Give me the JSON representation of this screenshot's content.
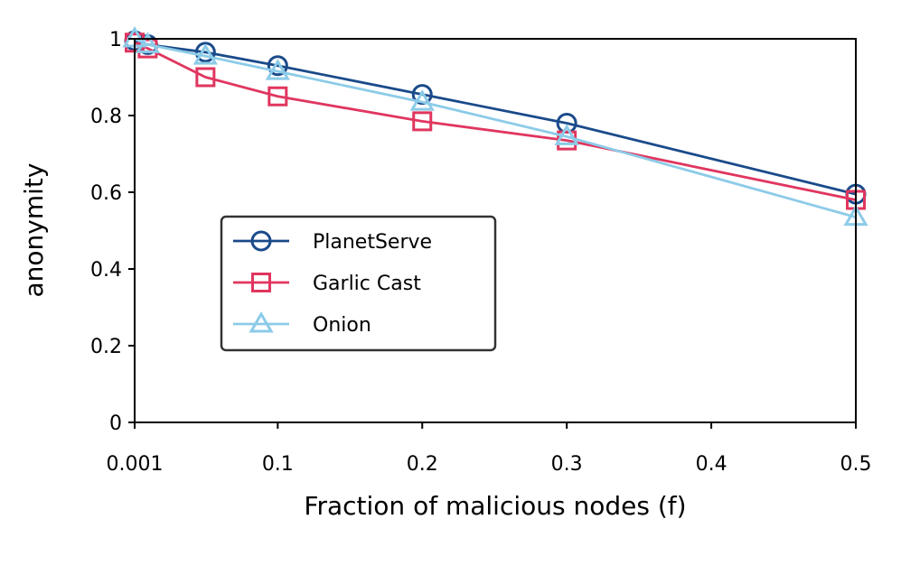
{
  "chart_data": {
    "type": "line",
    "xlabel": "Fraction of malicious nodes (f)",
    "ylabel": "anonymity",
    "x_tick_labels": [
      "0.001",
      "0.1",
      "0.2",
      "0.3",
      "0.4",
      "0.5"
    ],
    "x_tick_values": [
      0.001,
      0.1,
      0.2,
      0.3,
      0.4,
      0.5
    ],
    "y_tick_labels": [
      "0",
      "0.2",
      "0.4",
      "0.6",
      "0.8",
      "1"
    ],
    "y_tick_values": [
      0,
      0.2,
      0.4,
      0.6,
      0.8,
      1.0
    ],
    "xlim": [
      0.001,
      0.5
    ],
    "ylim": [
      0,
      1.0
    ],
    "grid": false,
    "legend_position": "center-left",
    "series": [
      {
        "name": "PlanetServe",
        "color": "#1a4a8a",
        "marker": "circle",
        "x": [
          0.001,
          0.01,
          0.05,
          0.1,
          0.2,
          0.3,
          0.5
        ],
        "y": [
          0.995,
          0.985,
          0.965,
          0.93,
          0.855,
          0.78,
          0.595
        ]
      },
      {
        "name": "Garlic Cast",
        "color": "#e0365f",
        "marker": "square",
        "x": [
          0.001,
          0.01,
          0.05,
          0.1,
          0.2,
          0.3,
          0.5
        ],
        "y": [
          0.99,
          0.975,
          0.9,
          0.85,
          0.785,
          0.735,
          0.58
        ]
      },
      {
        "name": "Onion",
        "color": "#8ccbe8",
        "marker": "triangle",
        "x": [
          0.001,
          0.01,
          0.05,
          0.1,
          0.2,
          0.3,
          0.5
        ],
        "y": [
          1.0,
          0.985,
          0.955,
          0.915,
          0.835,
          0.745,
          0.535
        ]
      }
    ]
  }
}
